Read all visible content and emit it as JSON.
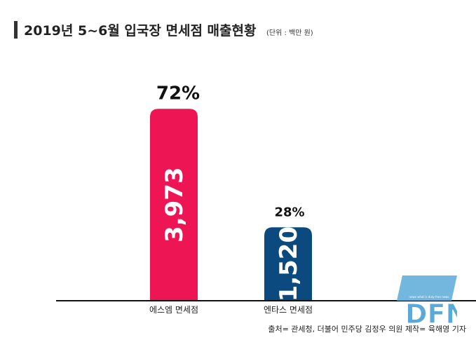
{
  "title": "2019년 5~6월 입국장 면세점 매출현황",
  "unit": "(단위 : 백만 원)",
  "source": "출처= 관세청, 더불어 민주당 김정우 의원   제작= 육해영 기자",
  "logo": {
    "text": "DFN",
    "tagline": "news what is duty free news",
    "color": "#5aa9d8"
  },
  "colors": {
    "bar1": "#ee1555",
    "bar2": "#0b4a7e"
  },
  "chart_data": {
    "type": "bar",
    "categories": [
      "에스엠 면세점",
      "엔타스 면세점"
    ],
    "values": [
      3973,
      1520
    ],
    "value_labels": [
      "3,973",
      "1,520"
    ],
    "share_labels": [
      "72%",
      "28%"
    ],
    "colors": [
      "#ee1555",
      "#0b4a7e"
    ],
    "title": "2019년 5~6월 입국장 면세점 매출현황",
    "xlabel": "",
    "ylabel": "",
    "ylim": [
      0,
      4500
    ],
    "grid": false
  }
}
